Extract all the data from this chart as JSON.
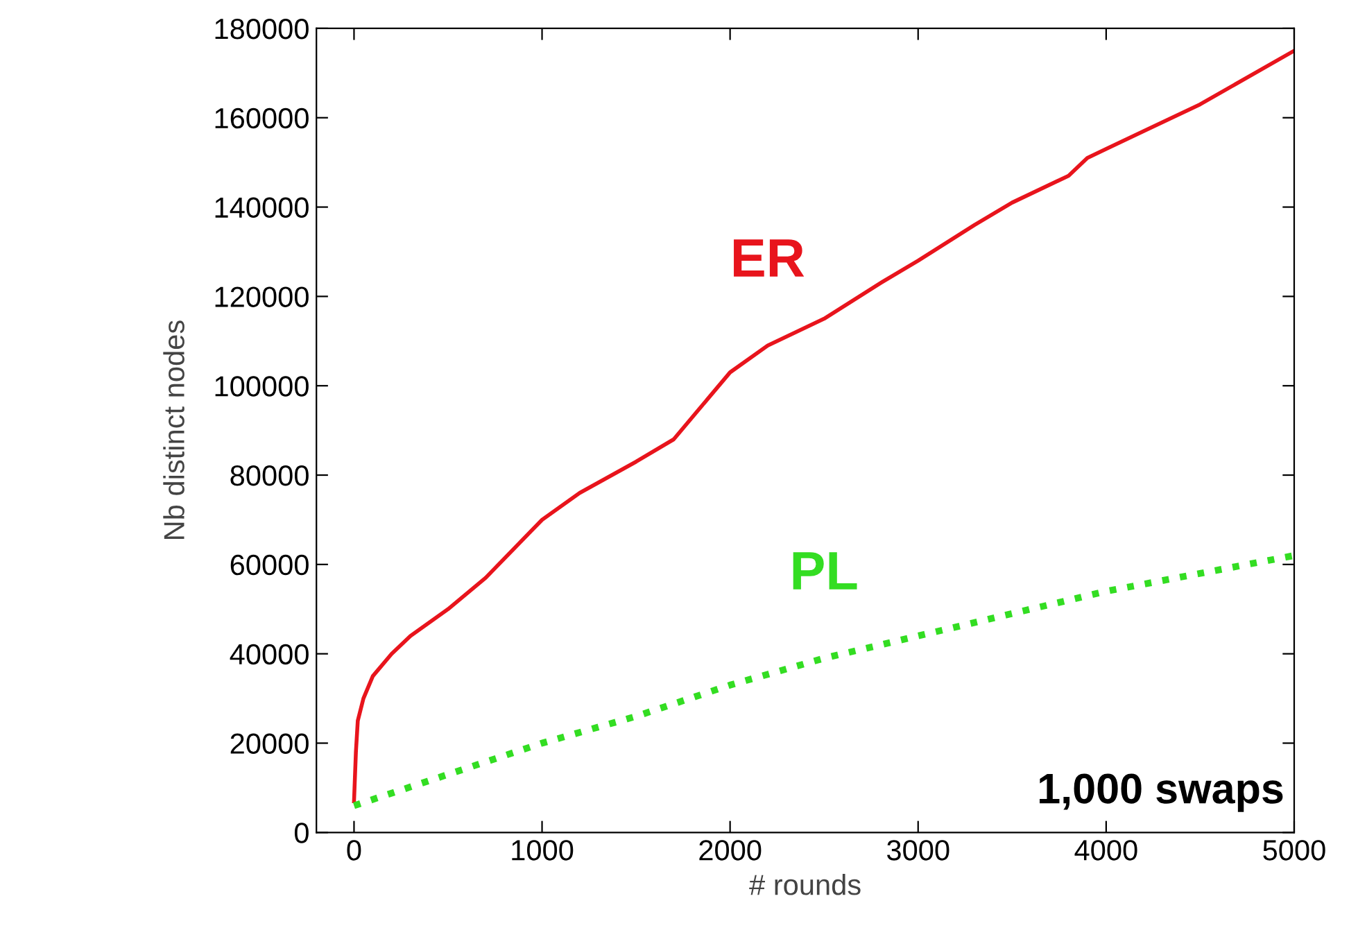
{
  "chart_data": {
    "type": "line",
    "xlabel": "# rounds",
    "ylabel": "Nb distinct nodes",
    "xlim": [
      -200,
      5000
    ],
    "ylim": [
      0,
      180000
    ],
    "xticks": [
      0,
      1000,
      2000,
      3000,
      4000,
      5000
    ],
    "yticks": [
      0,
      20000,
      40000,
      60000,
      80000,
      100000,
      120000,
      140000,
      160000,
      180000
    ],
    "grid": false,
    "legend": false,
    "marker": "none",
    "annotations": [
      "1,000 swaps"
    ],
    "series": [
      {
        "name": "ER",
        "color": "#e8141c",
        "line_style": "solid",
        "x": [
          0,
          10,
          20,
          50,
          100,
          200,
          300,
          500,
          700,
          1000,
          1200,
          1500,
          1700,
          1800,
          2000,
          2200,
          2500,
          2800,
          3000,
          3300,
          3500,
          3800,
          3900,
          4000,
          4200,
          4500,
          5000
        ],
        "values": [
          7000,
          18000,
          25000,
          30000,
          35000,
          40000,
          44000,
          50000,
          57000,
          70000,
          76000,
          83000,
          88000,
          93000,
          103000,
          109000,
          115000,
          123000,
          128000,
          136000,
          141000,
          147000,
          151000,
          153000,
          157000,
          163000,
          175000
        ]
      },
      {
        "name": "PL",
        "color": "#33dd22",
        "line_style": "dotted",
        "x": [
          0,
          500,
          1000,
          1500,
          2000,
          2500,
          3000,
          3500,
          4000,
          4500,
          5000
        ],
        "values": [
          6000,
          13000,
          20000,
          26000,
          33000,
          39000,
          44000,
          49000,
          54000,
          58000,
          62000
        ]
      }
    ]
  }
}
